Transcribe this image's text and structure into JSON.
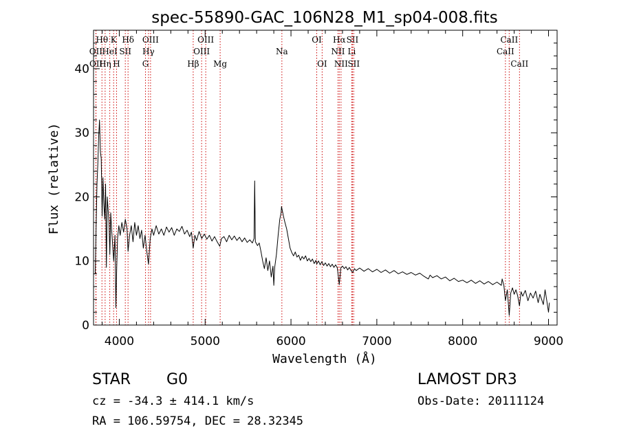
{
  "footer": {
    "object_class": "STAR",
    "subclass": "G0",
    "survey": "LAMOST DR3",
    "redshift_text": "cz = -34.3 ± 414.1 km/s",
    "obs_date_text": "Obs-Date: 20111124",
    "coords_text": "RA = 106.59754, DEC =  28.32345"
  },
  "chart_data": {
    "type": "line",
    "title": "spec-55890-GAC_106N28_M1_sp04-008.fits",
    "xlabel": "Wavelength (Å)",
    "ylabel": "Flux (relative)",
    "xlim": [
      3700,
      9100
    ],
    "ylim": [
      0,
      46
    ],
    "xticks": [
      4000,
      5000,
      6000,
      7000,
      8000,
      9000
    ],
    "yticks": [
      0,
      10,
      20,
      30,
      40
    ],
    "grid": false,
    "line_color": "#000000",
    "marker_color": "#cc0000",
    "series": [
      {
        "name": "flux",
        "points": [
          [
            3720,
            8.0
          ],
          [
            3730,
            15.0
          ],
          [
            3740,
            22.0
          ],
          [
            3750,
            25.0
          ],
          [
            3760,
            29.5
          ],
          [
            3770,
            32.0
          ],
          [
            3780,
            27.0
          ],
          [
            3790,
            26.0
          ],
          [
            3800,
            17.0
          ],
          [
            3810,
            23.0
          ],
          [
            3820,
            19.0
          ],
          [
            3830,
            16.5
          ],
          [
            3840,
            22.0
          ],
          [
            3850,
            9.0
          ],
          [
            3860,
            20.0
          ],
          [
            3870,
            18.0
          ],
          [
            3880,
            16.0
          ],
          [
            3890,
            11.0
          ],
          [
            3900,
            17.5
          ],
          [
            3910,
            15.0
          ],
          [
            3920,
            13.0
          ],
          [
            3935,
            10.0
          ],
          [
            3950,
            14.0
          ],
          [
            3960,
            2.7
          ],
          [
            3970,
            9.0
          ],
          [
            3980,
            13.5
          ],
          [
            3995,
            15.5
          ],
          [
            4010,
            14.0
          ],
          [
            4030,
            16.0
          ],
          [
            4050,
            14.5
          ],
          [
            4070,
            16.5
          ],
          [
            4090,
            15.0
          ],
          [
            4102,
            11.5
          ],
          [
            4120,
            14.0
          ],
          [
            4140,
            15.5
          ],
          [
            4160,
            13.0
          ],
          [
            4180,
            16.0
          ],
          [
            4200,
            14.0
          ],
          [
            4220,
            15.5
          ],
          [
            4240,
            13.5
          ],
          [
            4260,
            14.8
          ],
          [
            4280,
            12.0
          ],
          [
            4300,
            14.0
          ],
          [
            4320,
            11.5
          ],
          [
            4340,
            9.5
          ],
          [
            4360,
            13.5
          ],
          [
            4380,
            15.0
          ],
          [
            4400,
            14.0
          ],
          [
            4430,
            15.5
          ],
          [
            4460,
            14.2
          ],
          [
            4490,
            15.0
          ],
          [
            4520,
            14.0
          ],
          [
            4550,
            15.3
          ],
          [
            4580,
            14.5
          ],
          [
            4610,
            15.2
          ],
          [
            4640,
            14.0
          ],
          [
            4670,
            15.0
          ],
          [
            4700,
            14.6
          ],
          [
            4730,
            15.4
          ],
          [
            4760,
            14.2
          ],
          [
            4790,
            14.8
          ],
          [
            4820,
            13.8
          ],
          [
            4840,
            14.5
          ],
          [
            4861,
            12.0
          ],
          [
            4880,
            14.0
          ],
          [
            4900,
            13.2
          ],
          [
            4930,
            14.6
          ],
          [
            4960,
            13.5
          ],
          [
            4990,
            14.2
          ],
          [
            5020,
            13.4
          ],
          [
            5050,
            14.0
          ],
          [
            5080,
            13.1
          ],
          [
            5110,
            13.8
          ],
          [
            5140,
            13.0
          ],
          [
            5170,
            12.3
          ],
          [
            5190,
            13.5
          ],
          [
            5220,
            13.8
          ],
          [
            5250,
            13.0
          ],
          [
            5280,
            14.0
          ],
          [
            5310,
            13.3
          ],
          [
            5340,
            13.9
          ],
          [
            5370,
            13.2
          ],
          [
            5400,
            13.7
          ],
          [
            5430,
            13.0
          ],
          [
            5460,
            13.6
          ],
          [
            5490,
            12.9
          ],
          [
            5520,
            13.3
          ],
          [
            5550,
            12.8
          ],
          [
            5570,
            13.5
          ],
          [
            5577,
            22.5
          ],
          [
            5585,
            13.0
          ],
          [
            5610,
            12.4
          ],
          [
            5630,
            12.8
          ],
          [
            5650,
            11.5
          ],
          [
            5670,
            10.0
          ],
          [
            5690,
            8.8
          ],
          [
            5710,
            10.5
          ],
          [
            5730,
            8.5
          ],
          [
            5750,
            10.0
          ],
          [
            5770,
            7.5
          ],
          [
            5790,
            9.2
          ],
          [
            5800,
            6.2
          ],
          [
            5810,
            9.0
          ],
          [
            5830,
            11.0
          ],
          [
            5850,
            14.0
          ],
          [
            5870,
            16.5
          ],
          [
            5885,
            17.5
          ],
          [
            5890,
            18.5
          ],
          [
            5900,
            17.8
          ],
          [
            5915,
            16.8
          ],
          [
            5930,
            16.0
          ],
          [
            5950,
            15.0
          ],
          [
            5970,
            13.5
          ],
          [
            5990,
            12.0
          ],
          [
            6010,
            11.3
          ],
          [
            6030,
            10.8
          ],
          [
            6050,
            11.4
          ],
          [
            6070,
            10.6
          ],
          [
            6090,
            10.9
          ],
          [
            6110,
            10.1
          ],
          [
            6130,
            10.7
          ],
          [
            6150,
            10.3
          ],
          [
            6170,
            10.8
          ],
          [
            6190,
            10.0
          ],
          [
            6210,
            10.4
          ],
          [
            6230,
            9.9
          ],
          [
            6250,
            10.3
          ],
          [
            6270,
            9.6
          ],
          [
            6290,
            10.1
          ],
          [
            6300,
            9.5
          ],
          [
            6320,
            10.0
          ],
          [
            6340,
            9.4
          ],
          [
            6360,
            9.9
          ],
          [
            6380,
            9.3
          ],
          [
            6400,
            9.7
          ],
          [
            6420,
            9.2
          ],
          [
            6440,
            9.6
          ],
          [
            6460,
            9.1
          ],
          [
            6480,
            9.5
          ],
          [
            6500,
            9.0
          ],
          [
            6520,
            9.4
          ],
          [
            6540,
            8.9
          ],
          [
            6563,
            6.3
          ],
          [
            6580,
            8.9
          ],
          [
            6600,
            9.2
          ],
          [
            6620,
            8.8
          ],
          [
            6640,
            9.1
          ],
          [
            6660,
            8.6
          ],
          [
            6680,
            9.0
          ],
          [
            6700,
            8.5
          ],
          [
            6720,
            8.2
          ],
          [
            6740,
            8.8
          ],
          [
            6760,
            8.5
          ],
          [
            6800,
            8.9
          ],
          [
            6850,
            8.4
          ],
          [
            6900,
            8.8
          ],
          [
            6950,
            8.3
          ],
          [
            7000,
            8.7
          ],
          [
            7050,
            8.2
          ],
          [
            7100,
            8.6
          ],
          [
            7150,
            8.1
          ],
          [
            7200,
            8.5
          ],
          [
            7250,
            8.0
          ],
          [
            7300,
            8.3
          ],
          [
            7350,
            7.9
          ],
          [
            7400,
            8.2
          ],
          [
            7450,
            7.8
          ],
          [
            7500,
            8.1
          ],
          [
            7550,
            7.6
          ],
          [
            7600,
            7.2
          ],
          [
            7620,
            7.8
          ],
          [
            7650,
            7.4
          ],
          [
            7700,
            7.7
          ],
          [
            7750,
            7.2
          ],
          [
            7800,
            7.5
          ],
          [
            7850,
            6.9
          ],
          [
            7900,
            7.3
          ],
          [
            7950,
            6.8
          ],
          [
            8000,
            7.0
          ],
          [
            8050,
            6.6
          ],
          [
            8100,
            7.0
          ],
          [
            8150,
            6.5
          ],
          [
            8200,
            6.9
          ],
          [
            8250,
            6.4
          ],
          [
            8300,
            6.8
          ],
          [
            8350,
            6.3
          ],
          [
            8400,
            6.7
          ],
          [
            8450,
            6.2
          ],
          [
            8460,
            7.2
          ],
          [
            8480,
            6.2
          ],
          [
            8498,
            3.8
          ],
          [
            8520,
            5.5
          ],
          [
            8542,
            1.5
          ],
          [
            8560,
            5.0
          ],
          [
            8580,
            5.8
          ],
          [
            8600,
            4.8
          ],
          [
            8620,
            5.5
          ],
          [
            8640,
            4.6
          ],
          [
            8662,
            3.0
          ],
          [
            8680,
            5.2
          ],
          [
            8700,
            4.5
          ],
          [
            8730,
            5.4
          ],
          [
            8760,
            3.8
          ],
          [
            8790,
            5.0
          ],
          [
            8820,
            4.2
          ],
          [
            8850,
            5.3
          ],
          [
            8880,
            3.5
          ],
          [
            8900,
            4.8
          ],
          [
            8920,
            4.0
          ],
          [
            8940,
            3.2
          ],
          [
            8960,
            5.5
          ],
          [
            8980,
            3.8
          ],
          [
            9000,
            2.0
          ],
          [
            9010,
            3.5
          ]
        ]
      }
    ],
    "line_markers": [
      {
        "label": "Hθ",
        "wavelength": 3798,
        "row": 1
      },
      {
        "label": "OII",
        "wavelength": 3727,
        "row": 2
      },
      {
        "label": "OII",
        "wavelength": 3729,
        "row": 3
      },
      {
        "label": "HeI",
        "wavelength": 3889,
        "row": 2
      },
      {
        "label": "Hη",
        "wavelength": 3835,
        "row": 3
      },
      {
        "label": "K",
        "wavelength": 3934,
        "row": 1
      },
      {
        "label": "H",
        "wavelength": 3968,
        "row": 3
      },
      {
        "label": "SII",
        "wavelength": 4070,
        "row": 2
      },
      {
        "label": "Hδ",
        "wavelength": 4102,
        "row": 1
      },
      {
        "label": "OIII",
        "wavelength": 4364,
        "row": 1
      },
      {
        "label": "Hγ",
        "wavelength": 4340,
        "row": 2
      },
      {
        "label": "G",
        "wavelength": 4305,
        "row": 3
      },
      {
        "label": "Hβ",
        "wavelength": 4861,
        "row": 3
      },
      {
        "label": "OIII",
        "wavelength": 4959,
        "row": 2
      },
      {
        "label": "OIII",
        "wavelength": 5007,
        "row": 1
      },
      {
        "label": "Mg",
        "wavelength": 5175,
        "row": 3
      },
      {
        "label": "Na",
        "wavelength": 5894,
        "row": 2
      },
      {
        "label": "OI",
        "wavelength": 6300,
        "row": 1
      },
      {
        "label": "OI",
        "wavelength": 6363,
        "row": 3
      },
      {
        "label": "NII",
        "wavelength": 6548,
        "row": 2
      },
      {
        "label": "Hα",
        "wavelength": 6563,
        "row": 1
      },
      {
        "label": "NII",
        "wavelength": 6583,
        "row": 3
      },
      {
        "label": "SII",
        "wavelength": 6716,
        "row": 1
      },
      {
        "label": "Li",
        "wavelength": 6708,
        "row": 2
      },
      {
        "label": "SII",
        "wavelength": 6731,
        "row": 3
      },
      {
        "label": "CaII",
        "wavelength": 8542,
        "row": 1
      },
      {
        "label": "CaII",
        "wavelength": 8498,
        "row": 2
      },
      {
        "label": "CaII",
        "wavelength": 8662,
        "row": 3
      }
    ]
  }
}
